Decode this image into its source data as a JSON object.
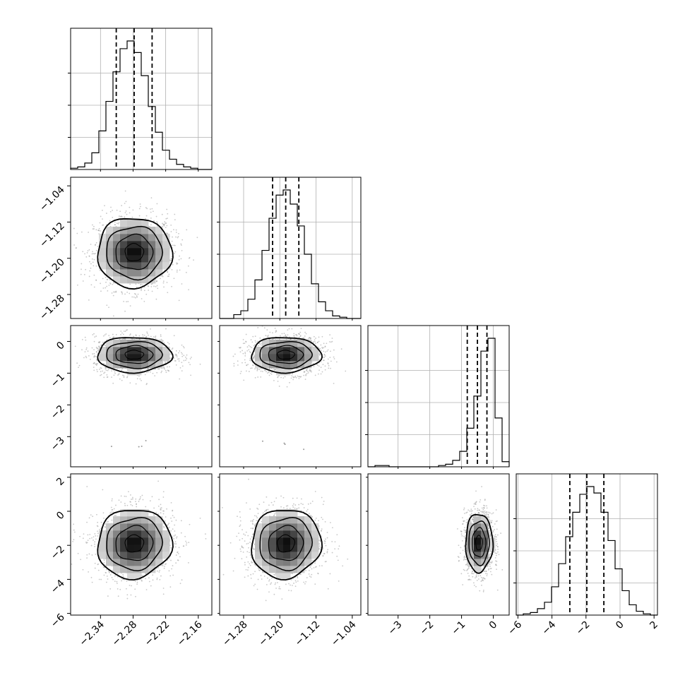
{
  "chart_data": {
    "type": "corner",
    "parameters": [
      {
        "range": [
          -2.395,
          -2.135
        ],
        "ticks": [
          -2.34,
          -2.28,
          -2.22,
          -2.16
        ],
        "tick_labels": [
          "−2.34",
          "−2.28",
          "−2.22",
          "−2.16"
        ],
        "quantiles": [
          -2.311,
          -2.278,
          -2.245
        ]
      },
      {
        "range": [
          -1.333,
          -1.021
        ],
        "ticks": [
          -1.28,
          -1.2,
          -1.12,
          -1.04
        ],
        "tick_labels": [
          "−1.28",
          "−1.20",
          "−1.12",
          "−1.04"
        ],
        "quantiles": [
          -1.216,
          -1.187,
          -1.158
        ]
      },
      {
        "range": [
          -3.95,
          0.5
        ],
        "ticks": [
          -3,
          -2,
          -1,
          0
        ],
        "tick_labels": [
          "−3",
          "−2",
          "−1",
          "0"
        ],
        "quantiles": [
          -0.82,
          -0.5,
          -0.2
        ]
      },
      {
        "range": [
          -6.1,
          2.2
        ],
        "ticks": [
          -6,
          -4,
          -2,
          0,
          2
        ],
        "tick_labels": [
          "−6",
          "−4",
          "−2",
          "0",
          "2"
        ],
        "quantiles": [
          -2.95,
          -1.95,
          -0.95
        ]
      }
    ],
    "grid": true,
    "histograms": [
      {
        "parameter": 0,
        "bins": 20,
        "counts": [
          0.01,
          0.02,
          0.05,
          0.13,
          0.3,
          0.53,
          0.76,
          0.94,
          1.0,
          0.91,
          0.73,
          0.49,
          0.29,
          0.15,
          0.08,
          0.04,
          0.02,
          0.01,
          0.0,
          0.0
        ]
      },
      {
        "parameter": 1,
        "bins": 20,
        "counts": [
          0.0,
          0.0,
          0.03,
          0.06,
          0.15,
          0.3,
          0.53,
          0.78,
          0.96,
          1.0,
          0.89,
          0.72,
          0.5,
          0.27,
          0.13,
          0.06,
          0.02,
          0.01,
          0.0,
          0.0
        ]
      },
      {
        "parameter": 2,
        "bins": 20,
        "counts": [
          0.0,
          0.01,
          0.01,
          0.0,
          0.0,
          0.0,
          0.0,
          0.0,
          0.0,
          0.0,
          0.01,
          0.02,
          0.05,
          0.12,
          0.3,
          0.55,
          0.9,
          1.0,
          0.38,
          0.04
        ]
      },
      {
        "parameter": 3,
        "bins": 20,
        "counts": [
          0.0,
          0.01,
          0.02,
          0.05,
          0.1,
          0.22,
          0.4,
          0.61,
          0.8,
          0.94,
          1.0,
          0.95,
          0.8,
          0.58,
          0.36,
          0.19,
          0.08,
          0.03,
          0.01,
          0.0
        ]
      }
    ],
    "pairs": [
      {
        "x": 0,
        "y": 1,
        "center": [
          -2.278,
          -1.187
        ],
        "sd": [
          0.032,
          0.036
        ],
        "rho": 0.0
      },
      {
        "x": 0,
        "y": 2,
        "center": [
          -2.278,
          -0.42
        ],
        "sd": [
          0.032,
          0.26
        ],
        "rho": 0.0
      },
      {
        "x": 1,
        "y": 2,
        "center": [
          -1.187,
          -0.42
        ],
        "sd": [
          0.036,
          0.26
        ],
        "rho": 0.0
      },
      {
        "x": 0,
        "y": 3,
        "center": [
          -2.278,
          -1.9
        ],
        "sd": [
          0.032,
          0.95
        ],
        "rho": 0.05
      },
      {
        "x": 1,
        "y": 3,
        "center": [
          -1.187,
          -1.9
        ],
        "sd": [
          0.036,
          0.95
        ],
        "rho": 0.05
      },
      {
        "x": 2,
        "y": 3,
        "center": [
          -0.45,
          -1.85
        ],
        "sd": [
          0.2,
          0.8
        ],
        "rho": 0.0
      }
    ]
  }
}
